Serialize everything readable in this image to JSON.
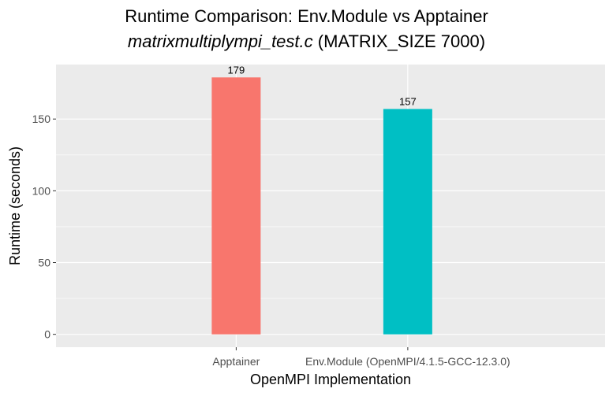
{
  "chart_data": {
    "type": "bar",
    "title": "Runtime Comparison: Env.Module vs Apptainer",
    "subtitle_italic": "matrixmultiplympi_test.c",
    "subtitle_rest": " (MATRIX_SIZE 7000)",
    "xlabel": "OpenMPI Implementation",
    "ylabel": "Runtime (seconds)",
    "categories": [
      "Apptainer",
      "Env.Module (OpenMPI/4.1.5-GCC-12.3.0)"
    ],
    "values": [
      179,
      157
    ],
    "data_labels": [
      "179",
      "157"
    ],
    "colors": [
      "#F8766D",
      "#00BFC4"
    ],
    "ylim": [
      -8.95,
      187.95
    ],
    "yticks": [
      0,
      50,
      100,
      150
    ],
    "ytick_labels": [
      "0",
      "50",
      "100",
      "150"
    ],
    "grid": true,
    "legend": "none",
    "panel_color": "#EBEBEB"
  }
}
